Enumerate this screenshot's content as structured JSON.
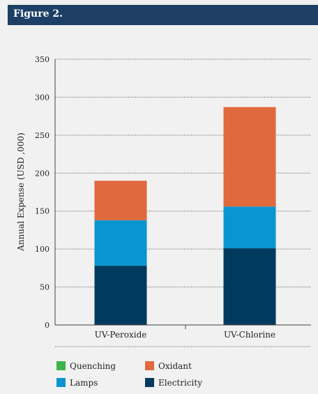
{
  "figure": {
    "title": "Figure 2."
  },
  "chart_data": {
    "type": "bar",
    "stacked": true,
    "title": "",
    "xlabel": "",
    "ylabel": "Annual Expense (USD ,000)",
    "ylim": [
      0,
      350
    ],
    "yticks": [
      0,
      50,
      100,
      150,
      200,
      250,
      300,
      350
    ],
    "grid": true,
    "legend_position": "bottom",
    "categories": [
      "UV-Peroxide",
      "UV-Chlorine"
    ],
    "series": [
      {
        "name": "Quenching",
        "color": "#3bb54a",
        "values": [
          0,
          0
        ]
      },
      {
        "name": "Lamps",
        "color": "#0b95d0",
        "values": [
          60,
          55
        ]
      },
      {
        "name": "Oxidant",
        "color": "#e0693d",
        "values": [
          52,
          131
        ]
      },
      {
        "name": "Electricity",
        "color": "#003a5d",
        "values": [
          78,
          101
        ]
      }
    ],
    "stack_order": [
      "Electricity",
      "Lamps",
      "Oxidant",
      "Quenching"
    ],
    "legend_order": [
      "Quenching",
      "Oxidant",
      "Lamps",
      "Electricity"
    ]
  }
}
